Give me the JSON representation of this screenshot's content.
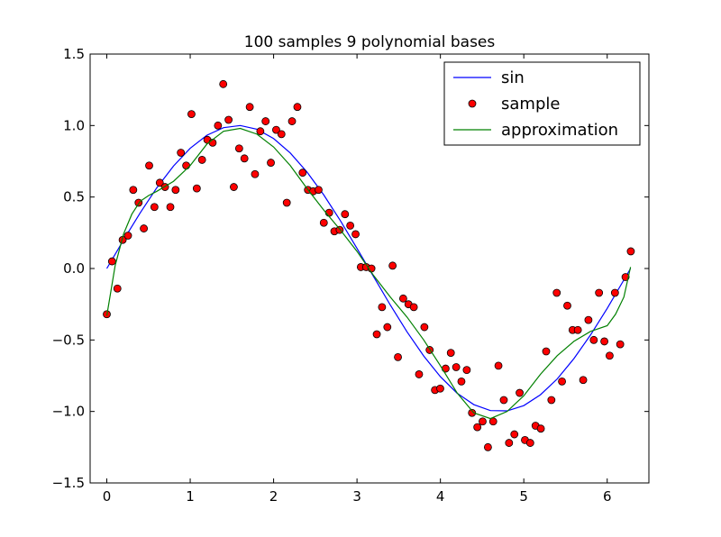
{
  "chart_data": {
    "type": "line",
    "title": "100 samples 9 polynomial bases",
    "xlabel": "",
    "ylabel": "",
    "xlim": [
      -0.2,
      6.5
    ],
    "ylim": [
      -1.5,
      1.5
    ],
    "x_ticks": [
      0,
      1,
      2,
      3,
      4,
      5,
      6
    ],
    "x_tick_labels": [
      "0",
      "1",
      "2",
      "3",
      "4",
      "5",
      "6"
    ],
    "y_ticks": [
      -1.5,
      -1.0,
      -0.5,
      0.0,
      0.5,
      1.0,
      1.5
    ],
    "y_tick_labels": [
      "−1.5",
      "−1.0",
      "−0.5",
      "0.0",
      "0.5",
      "1.0",
      "1.5"
    ],
    "grid": false,
    "legend_position": "top-right",
    "series": [
      {
        "name": "sin",
        "kind": "line",
        "color": "#0000ff",
        "x": [
          0.0,
          0.2,
          0.4,
          0.6,
          0.8,
          1.0,
          1.2,
          1.4,
          1.6,
          1.8,
          2.0,
          2.2,
          2.4,
          2.6,
          2.8,
          3.0,
          3.2,
          3.4,
          3.6,
          3.8,
          4.0,
          4.2,
          4.4,
          4.6,
          4.8,
          5.0,
          5.2,
          5.4,
          5.6,
          5.8,
          6.0,
          6.28
        ],
        "y": [
          0.0,
          0.199,
          0.389,
          0.565,
          0.717,
          0.841,
          0.932,
          0.985,
          1.0,
          0.974,
          0.909,
          0.808,
          0.675,
          0.516,
          0.335,
          0.141,
          -0.058,
          -0.256,
          -0.443,
          -0.612,
          -0.757,
          -0.872,
          -0.952,
          -0.994,
          -0.996,
          -0.959,
          -0.883,
          -0.773,
          -0.631,
          -0.465,
          -0.279,
          0.0
        ]
      },
      {
        "name": "sample",
        "kind": "scatter",
        "color": "#ff0000",
        "x": [
          0.0,
          0.063,
          0.127,
          0.19,
          0.254,
          0.317,
          0.381,
          0.444,
          0.508,
          0.571,
          0.635,
          0.698,
          0.762,
          0.825,
          0.888,
          0.952,
          1.015,
          1.079,
          1.142,
          1.206,
          1.269,
          1.333,
          1.396,
          1.46,
          1.523,
          1.587,
          1.65,
          1.714,
          1.777,
          1.841,
          1.904,
          1.967,
          2.031,
          2.094,
          2.158,
          2.221,
          2.285,
          2.348,
          2.412,
          2.475,
          2.539,
          2.602,
          2.666,
          2.729,
          2.792,
          2.856,
          2.919,
          2.983,
          3.046,
          3.11,
          3.173,
          3.237,
          3.3,
          3.364,
          3.427,
          3.491,
          3.554,
          3.617,
          3.681,
          3.744,
          3.808,
          3.871,
          3.935,
          3.998,
          4.062,
          4.125,
          4.189,
          4.252,
          4.316,
          4.379,
          4.443,
          4.506,
          4.57,
          4.633,
          4.696,
          4.76,
          4.823,
          4.887,
          4.95,
          5.014,
          5.077,
          5.141,
          5.204,
          5.268,
          5.331,
          5.395,
          5.458,
          5.522,
          5.585,
          5.648,
          5.712,
          5.775,
          5.839,
          5.902,
          5.966,
          6.029,
          6.093,
          6.156,
          6.22,
          6.283
        ],
        "y": [
          -0.32,
          0.05,
          -0.14,
          0.2,
          0.23,
          0.55,
          0.46,
          0.28,
          0.72,
          0.43,
          0.6,
          0.57,
          0.43,
          0.55,
          0.81,
          0.72,
          1.08,
          0.56,
          0.76,
          0.9,
          0.88,
          1.0,
          1.29,
          1.04,
          0.57,
          0.84,
          0.77,
          1.13,
          0.66,
          0.96,
          1.03,
          0.74,
          0.97,
          0.94,
          0.46,
          1.03,
          1.13,
          0.67,
          0.55,
          0.54,
          0.55,
          0.32,
          0.39,
          0.26,
          0.27,
          0.38,
          0.3,
          0.24,
          0.01,
          0.01,
          0.0,
          -0.46,
          -0.27,
          -0.41,
          0.02,
          -0.62,
          -0.21,
          -0.25,
          -0.27,
          -0.74,
          -0.41,
          -0.57,
          -0.85,
          -0.84,
          -0.7,
          -0.59,
          -0.69,
          -0.79,
          -0.71,
          -1.01,
          -1.11,
          -1.07,
          -1.25,
          -1.07,
          -0.68,
          -0.92,
          -1.22,
          -1.16,
          -0.87,
          -1.2,
          -1.22,
          -1.1,
          -1.12,
          -0.58,
          -0.92,
          -0.17,
          -0.79,
          -0.26,
          -0.43,
          -0.43,
          -0.78,
          -0.36,
          -0.5,
          -0.17,
          -0.51,
          -0.61,
          -0.17,
          -0.53,
          -0.06,
          0.12
        ]
      },
      {
        "name": "approximation",
        "kind": "line",
        "color": "#008000",
        "x": [
          0.0,
          0.1,
          0.2,
          0.3,
          0.4,
          0.5,
          0.6,
          0.8,
          1.0,
          1.2,
          1.4,
          1.6,
          1.8,
          2.0,
          2.2,
          2.4,
          2.6,
          2.8,
          3.0,
          3.2,
          3.4,
          3.6,
          3.8,
          4.0,
          4.2,
          4.4,
          4.6,
          4.8,
          5.0,
          5.2,
          5.4,
          5.6,
          5.8,
          6.0,
          6.1,
          6.2,
          6.28
        ],
        "y": [
          -0.33,
          0.02,
          0.24,
          0.38,
          0.47,
          0.51,
          0.54,
          0.61,
          0.72,
          0.87,
          0.96,
          0.98,
          0.94,
          0.85,
          0.72,
          0.56,
          0.41,
          0.27,
          0.12,
          -0.05,
          -0.2,
          -0.34,
          -0.5,
          -0.68,
          -0.87,
          -1.01,
          -1.05,
          -1.0,
          -0.89,
          -0.74,
          -0.61,
          -0.51,
          -0.44,
          -0.4,
          -0.32,
          -0.2,
          0.01
        ]
      }
    ]
  }
}
